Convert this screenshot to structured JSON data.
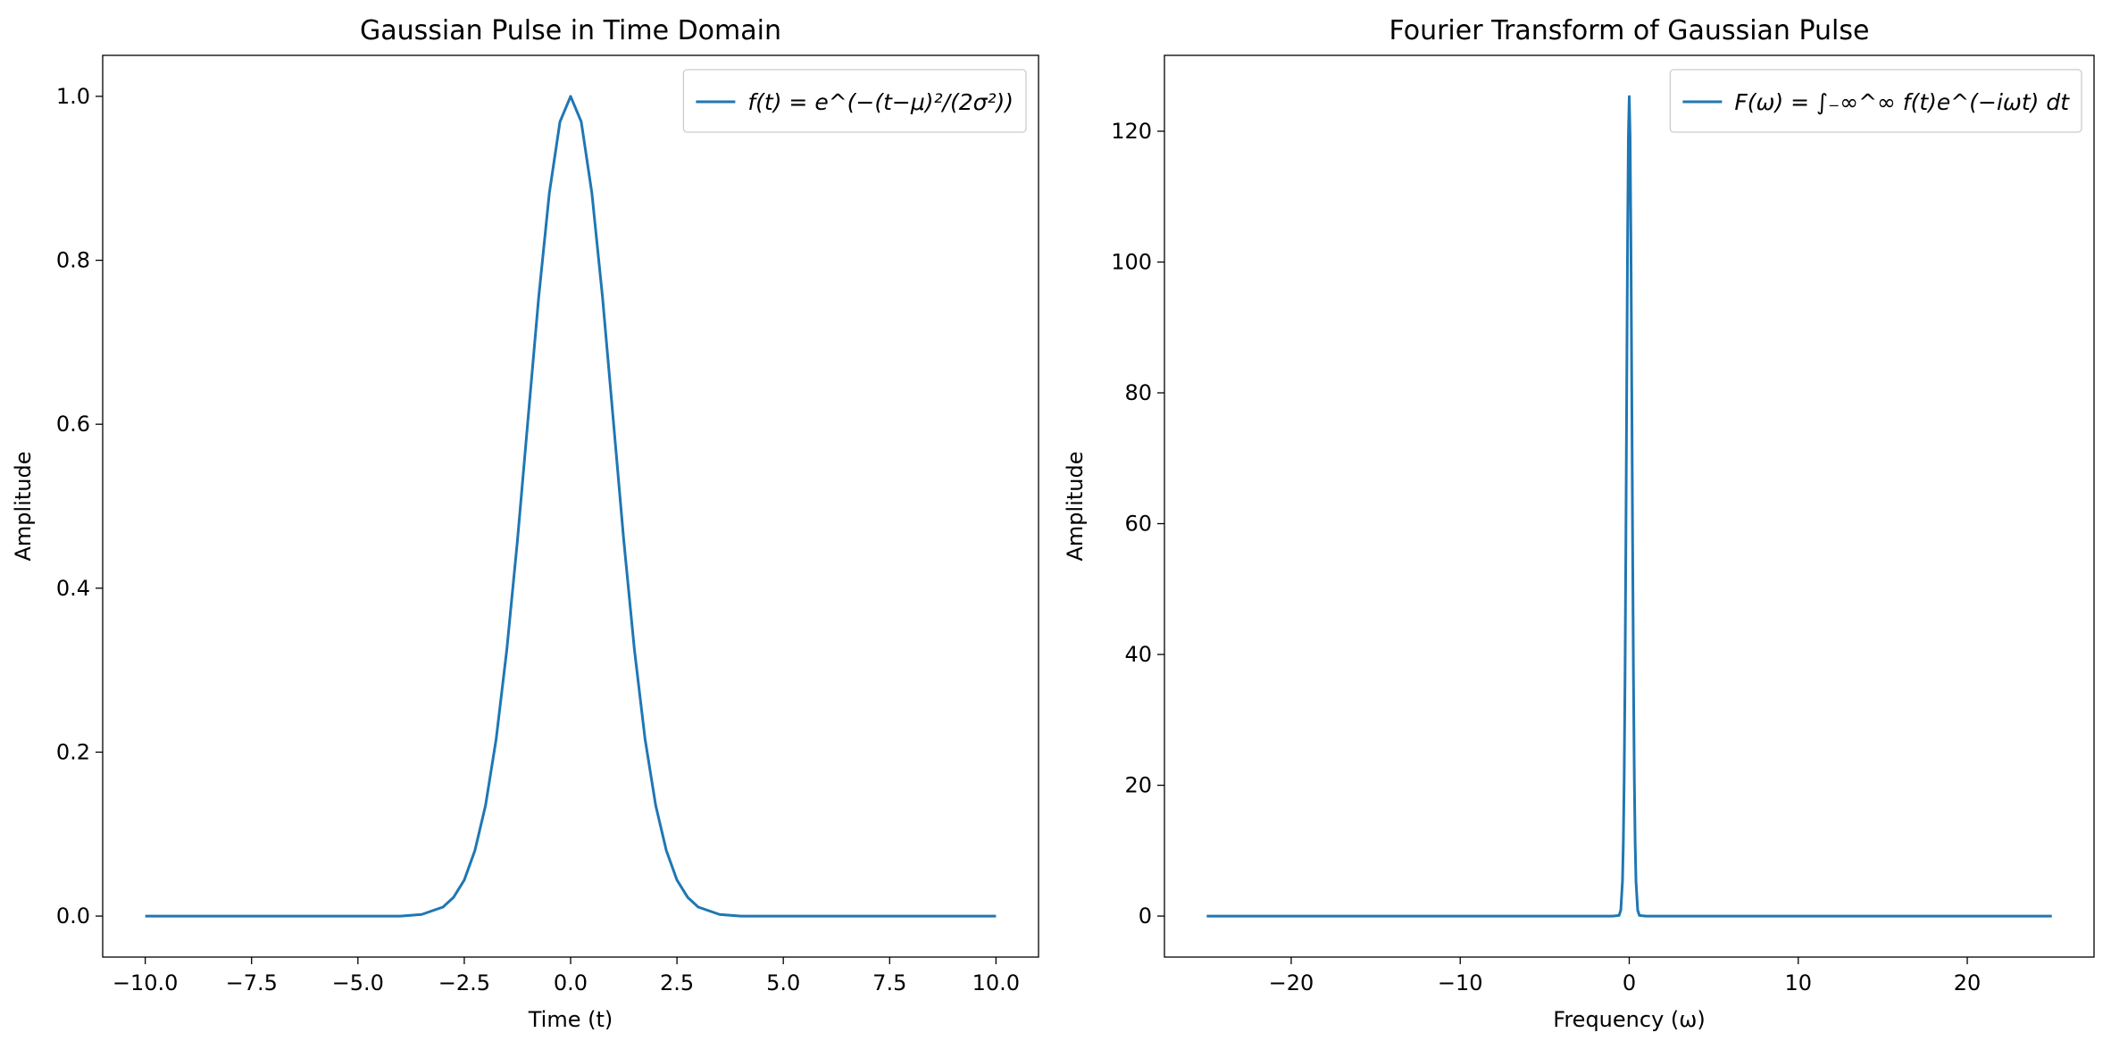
{
  "chart_data": [
    {
      "type": "line",
      "title": "Gaussian Pulse in Time Domain",
      "x_label": "Time (t)",
      "y_label": "Amplitude",
      "x": [
        -10,
        -8,
        -6,
        -5,
        -4,
        -3.5,
        -3,
        -2.75,
        -2.5,
        -2.25,
        -2,
        -1.75,
        -1.5,
        -1.25,
        -1,
        -0.75,
        -0.5,
        -0.25,
        0,
        0.25,
        0.5,
        0.75,
        1,
        1.25,
        1.5,
        1.75,
        2,
        2.25,
        2.5,
        2.75,
        3,
        3.5,
        4,
        5,
        6,
        8,
        10
      ],
      "series": [
        {
          "name": "f(t) = e^(−(t−μ)²/(2σ²))",
          "color": "#1f77b4",
          "values": [
            0,
            0,
            0,
            0,
            0,
            0.002,
            0.011,
            0.023,
            0.044,
            0.08,
            0.135,
            0.216,
            0.325,
            0.458,
            0.607,
            0.755,
            0.882,
            0.969,
            1,
            0.969,
            0.882,
            0.755,
            0.607,
            0.458,
            0.325,
            0.216,
            0.135,
            0.08,
            0.044,
            0.023,
            0.011,
            0.002,
            0,
            0,
            0,
            0,
            0
          ]
        }
      ],
      "xlim": [
        -11,
        11
      ],
      "xticks": [
        {
          "value": -10,
          "label": "−10.0"
        },
        {
          "value": -7.5,
          "label": "−7.5"
        },
        {
          "value": -5,
          "label": "−5.0"
        },
        {
          "value": -2.5,
          "label": "−2.5"
        },
        {
          "value": 0,
          "label": "0.0"
        },
        2.5,
        {
          "value": 5,
          "label": "5.0"
        },
        7.5,
        {
          "value": 10,
          "label": "10.0"
        }
      ],
      "ylim": [
        -0.05,
        1.05
      ],
      "yticks": [
        {
          "value": 0,
          "label": "0.0"
        },
        0.2,
        0.4,
        0.6,
        0.8,
        {
          "value": 1,
          "label": "1.0"
        }
      ],
      "legend": "upper right"
    },
    {
      "type": "line",
      "title": "Fourier Transform of Gaussian Pulse",
      "x_label": "Frequency (ω)",
      "y_label": "Amplitude",
      "x": [
        -25,
        -10,
        -1,
        -0.6,
        -0.5,
        -0.4,
        -0.35,
        -0.3,
        -0.25,
        -0.2,
        -0.15,
        -0.1,
        -0.05,
        0,
        0.05,
        0.1,
        0.15,
        0.2,
        0.25,
        0.3,
        0.35,
        0.4,
        0.5,
        0.6,
        1,
        10,
        25
      ],
      "series": [
        {
          "name": "F(ω) = ∫₋∞^∞ f(t)e^(−iωt) dt",
          "color": "#1f77b4",
          "values": [
            0,
            0,
            0,
            0.1,
            0.9,
            5.3,
            11.2,
            21.2,
            36.4,
            56.9,
            80.4,
            102.9,
            119.3,
            125.3,
            119.3,
            102.9,
            80.4,
            56.9,
            36.4,
            21.2,
            11.2,
            5.3,
            0.9,
            0.1,
            0,
            0,
            0
          ]
        }
      ],
      "xlim": [
        -27.5,
        27.5
      ],
      "xticks": [
        {
          "value": -20,
          "label": "−20"
        },
        {
          "value": -10,
          "label": "−10"
        },
        0,
        10,
        20
      ],
      "ylim": [
        -6.27,
        131.6
      ],
      "yticks": [
        0,
        20,
        40,
        60,
        80,
        100,
        120
      ],
      "legend": "upper right"
    }
  ]
}
